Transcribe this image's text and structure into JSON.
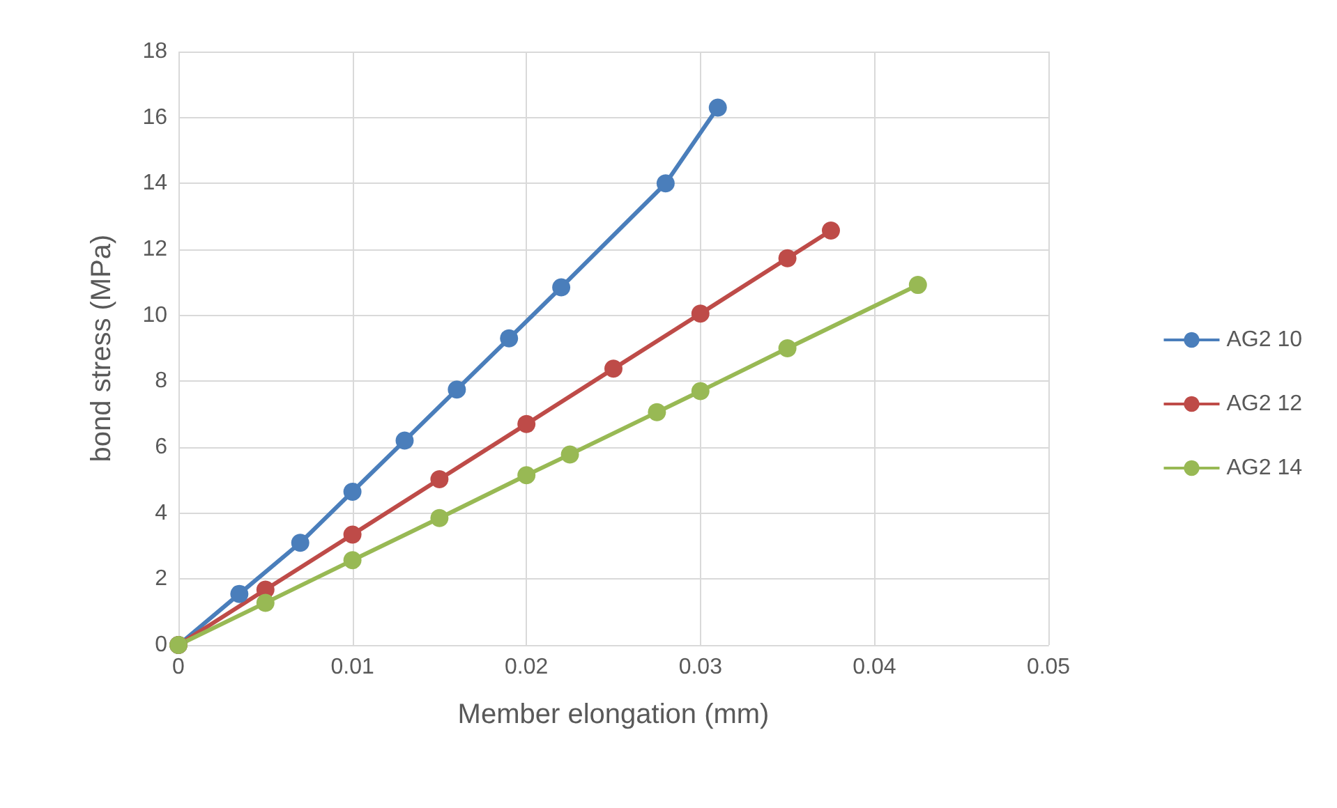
{
  "chart_data": {
    "type": "line",
    "xlabel": "Member elongation (mm)",
    "ylabel": "bond stress (MPa)",
    "xlim": [
      0,
      0.05
    ],
    "xticks": [
      0,
      0.01,
      0.02,
      0.03,
      0.04,
      0.05
    ],
    "ylim": [
      0,
      18
    ],
    "yticks": [
      0,
      2,
      4,
      6,
      8,
      10,
      12,
      14,
      16,
      18
    ],
    "grid": true,
    "legend": "right",
    "marker": "circle",
    "line_style": "solid",
    "series": [
      {
        "name": "AG2 10",
        "color": "#4a7ebb",
        "x": [
          0,
          0.0035,
          0.007,
          0.01,
          0.013,
          0.016,
          0.019,
          0.022,
          0.028,
          0.031
        ],
        "values": [
          0,
          1.55,
          3.1,
          4.65,
          6.2,
          7.75,
          9.3,
          10.85,
          14,
          16.3
        ]
      },
      {
        "name": "AG2 12",
        "color": "#be4b48",
        "x": [
          0,
          0.005,
          0.01,
          0.015,
          0.02,
          0.025,
          0.03,
          0.035,
          0.0375
        ],
        "values": [
          0,
          1.68,
          3.35,
          5.03,
          6.7,
          8.38,
          10.05,
          11.73,
          12.57
        ]
      },
      {
        "name": "AG2 14",
        "color": "#98b954",
        "x": [
          0,
          0.005,
          0.01,
          0.015,
          0.02,
          0.0225,
          0.0275,
          0.03,
          0.035,
          0.0425
        ],
        "values": [
          0,
          1.28,
          2.57,
          3.85,
          5.15,
          5.78,
          7.06,
          7.7,
          9.0,
          10.92
        ]
      }
    ]
  }
}
